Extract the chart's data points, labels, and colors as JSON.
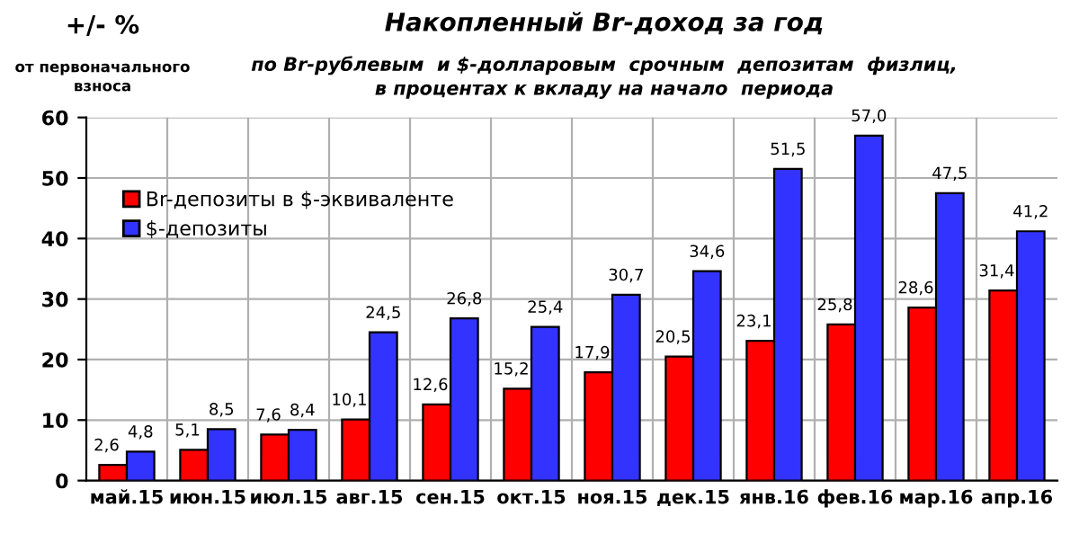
{
  "chart_data": {
    "type": "bar",
    "title": "Накопленный Br-доход за год",
    "subtitle": "по Br-рублевым  и $-долларовым  срочным  депозитам  физлиц,\nв процентах к вкладу на начало  периода",
    "ylabel": "+/- %\nот первоначального\nвзноса",
    "categories": [
      "май.15",
      "июн.15",
      "июл.15",
      "авг.15",
      "сен.15",
      "окт.15",
      "ноя.15",
      "дек.15",
      "янв.16",
      "фев.16",
      "мар.16",
      "апр.16"
    ],
    "series": [
      {
        "name": "Br-депозиты в $-эквиваленте",
        "color": "#ff0000",
        "values": [
          2.6,
          5.1,
          7.6,
          10.1,
          12.6,
          15.2,
          17.9,
          20.5,
          23.1,
          25.8,
          28.6,
          31.4
        ],
        "value_labels": [
          "2,6",
          "5,1",
          "7,6",
          "10,1",
          "12,6",
          "15,2",
          "17,9",
          "20,5",
          "23,1",
          "25,8",
          "28,6",
          "31,4"
        ]
      },
      {
        "name": "$-депозиты",
        "color": "#3333ff",
        "values": [
          4.8,
          8.5,
          8.4,
          24.5,
          26.8,
          25.4,
          30.7,
          34.6,
          51.5,
          57.0,
          47.5,
          41.2
        ],
        "value_labels": [
          "4,8",
          "8,5",
          "8,4",
          "24,5",
          "26,8",
          "25,4",
          "30,7",
          "34,6",
          "51,5",
          "57,0",
          "47,5",
          "41,2"
        ]
      }
    ],
    "ylim": [
      0,
      60
    ],
    "yticks": [
      0,
      10,
      20,
      30,
      40,
      50,
      60
    ],
    "grid": true,
    "legend": "top left"
  }
}
